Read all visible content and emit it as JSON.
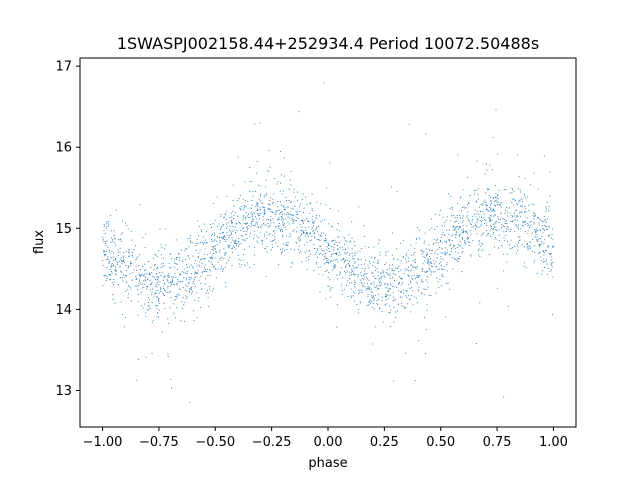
{
  "chart_data": {
    "type": "scatter",
    "title": "1SWASPJ002158.44+252934.4 Period 10072.50488s",
    "xlabel": "phase",
    "ylabel": "flux",
    "xlim": [
      -1.1,
      1.1
    ],
    "ylim": [
      12.55,
      17.1
    ],
    "xticks": [
      -1.0,
      -0.75,
      -0.5,
      -0.25,
      0.0,
      0.25,
      0.5,
      0.75,
      1.0
    ],
    "xtick_labels": [
      "−1.00",
      "−0.75",
      "−0.50",
      "−0.25",
      "0.00",
      "0.25",
      "0.50",
      "0.75",
      "1.00"
    ],
    "yticks": [
      13,
      14,
      15,
      16,
      17
    ],
    "ytick_labels": [
      "13",
      "14",
      "15",
      "16",
      "17"
    ],
    "grid": false,
    "series": [
      {
        "color": "#1f77b4",
        "model": {
          "mean_flux": 14.73,
          "amplitude": 0.43,
          "peak_phases": [
            -0.25,
            0.75
          ],
          "trough_phases": [
            -0.75,
            0.25
          ],
          "scatter_sigma": 0.22,
          "phase_range": [
            -1.0,
            1.0
          ]
        }
      }
    ]
  }
}
